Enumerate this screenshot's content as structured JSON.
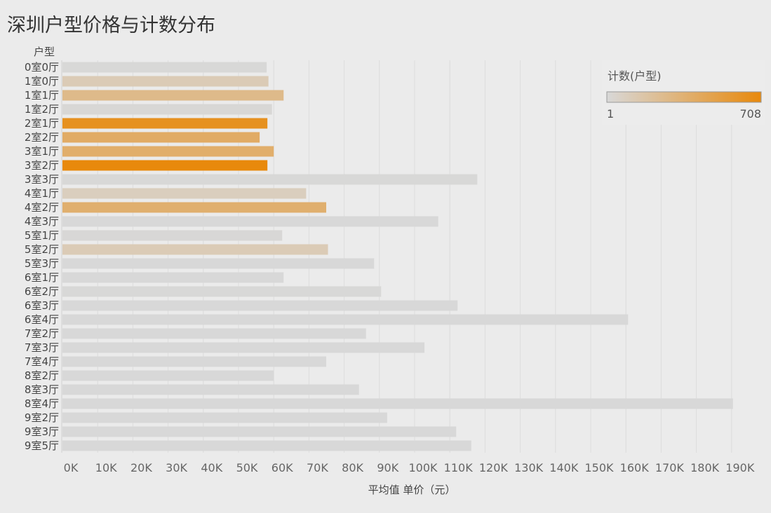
{
  "page": {
    "title": "深圳户型价格与计数分布"
  },
  "chart_data": {
    "type": "bar",
    "orientation": "horizontal",
    "title": "深圳户型价格与计数分布",
    "category_header": "户型",
    "xlabel": "平均值 单价（元）",
    "ylabel": "户型",
    "xlim": [
      0,
      199000
    ],
    "x_ticks": [
      "0K",
      "10K",
      "20K",
      "30K",
      "40K",
      "50K",
      "60K",
      "70K",
      "80K",
      "90K",
      "100K",
      "110K",
      "120K",
      "130K",
      "140K",
      "150K",
      "160K",
      "170K",
      "180K",
      "190K"
    ],
    "grid": true,
    "color_legend": {
      "title": "计数(户型)",
      "min_label": "1",
      "max_label": "708",
      "min": 1,
      "max": 708,
      "color_low": "#d8d8d8",
      "color_high": "#e8890c",
      "placement": "top-right"
    },
    "categories": [
      "0室0厅",
      "1室0厅",
      "1室1厅",
      "1室2厅",
      "2室1厅",
      "2室2厅",
      "3室1厅",
      "3室2厅",
      "3室3厅",
      "4室1厅",
      "4室2厅",
      "4室3厅",
      "5室1厅",
      "5室2厅",
      "5室3厅",
      "6室1厅",
      "6室2厅",
      "6室3厅",
      "6室4厅",
      "7室2厅",
      "7室3厅",
      "7室4厅",
      "8室2厅",
      "8室3厅",
      "8室4厅",
      "9室2厅",
      "9室3厅",
      "9室5厅"
    ],
    "series": [
      {
        "values": [
          58000,
          58500,
          62800,
          59500,
          58200,
          56000,
          60000,
          58200,
          117800,
          69200,
          74900,
          106700,
          62400,
          75400,
          88500,
          62800,
          90500,
          112200,
          160600,
          86200,
          102800,
          74900,
          60000,
          84200,
          190400,
          92200,
          111800,
          116100
        ],
        "counts": [
          5,
          120,
          270,
          10,
          640,
          400,
          380,
          708,
          3,
          90,
          370,
          2,
          8,
          120,
          2,
          2,
          4,
          1,
          1,
          1,
          1,
          1,
          1,
          1,
          1,
          1,
          1,
          1
        ]
      }
    ]
  }
}
